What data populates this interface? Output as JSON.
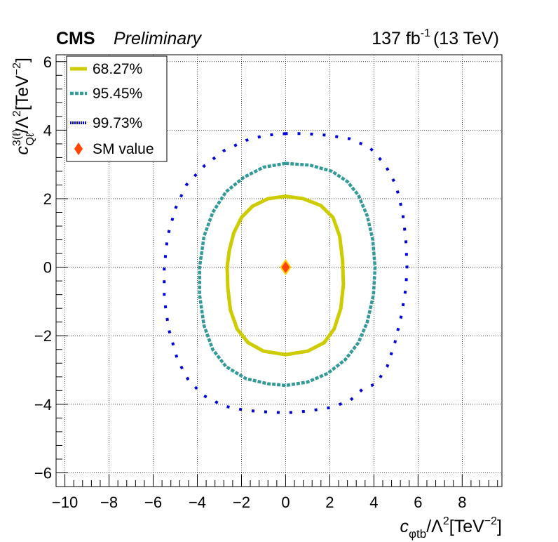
{
  "header": {
    "experiment": "CMS",
    "status": "Preliminary",
    "lumi": "137 fb",
    "lumi_exp": "-1",
    "energy": "(13 TeV)"
  },
  "chart_data": {
    "type": "scatter",
    "xlabel": {
      "c": "c",
      "sub": "φtb",
      "rest": "/Λ",
      "sup": "2",
      "unit": "[TeV",
      "unit_sup": "−2",
      "close": "]"
    },
    "ylabel": {
      "c": "c",
      "sup1": "3(ℓ)",
      "sub": "Qℓ",
      "rest": "/Λ",
      "sup": "2",
      "unit": "[TeV",
      "unit_sup": "−2",
      "close": "]"
    },
    "xlim": [
      -10.4,
      9.8
    ],
    "ylim": [
      -6.4,
      6.2
    ],
    "x_ticks": [
      -10,
      -8,
      -6,
      -4,
      -2,
      0,
      2,
      4,
      6,
      8
    ],
    "x_tick_labels": [
      "−10",
      "−8",
      "−6",
      "−4",
      "−2",
      "0",
      "2",
      "4",
      "6",
      "8"
    ],
    "y_ticks": [
      -6,
      -4,
      -2,
      0,
      2,
      4,
      6
    ],
    "y_tick_labels": [
      "−6",
      "−4",
      "−2",
      "0",
      "2",
      "4",
      "6"
    ],
    "grid": true,
    "legend_position": "top-left",
    "series": [
      {
        "name": "68.27%",
        "style": "solid",
        "color": "#cccc00",
        "points": [
          [
            0,
            2.07
          ],
          [
            -0.8,
            2.0
          ],
          [
            -1.5,
            1.78
          ],
          [
            -2.0,
            1.45
          ],
          [
            -2.35,
            1.0
          ],
          [
            -2.55,
            0.5
          ],
          [
            -2.65,
            0
          ],
          [
            -2.62,
            -0.6
          ],
          [
            -2.5,
            -1.25
          ],
          [
            -2.2,
            -1.8
          ],
          [
            -1.7,
            -2.2
          ],
          [
            -1.0,
            -2.45
          ],
          [
            0,
            -2.55
          ],
          [
            1.0,
            -2.45
          ],
          [
            1.75,
            -2.2
          ],
          [
            2.2,
            -1.8
          ],
          [
            2.5,
            -1.2
          ],
          [
            2.62,
            -0.5
          ],
          [
            2.58,
            0.2
          ],
          [
            2.45,
            0.9
          ],
          [
            2.15,
            1.45
          ],
          [
            1.6,
            1.8
          ],
          [
            0.8,
            2.0
          ]
        ]
      },
      {
        "name": "95.45%",
        "style": "dashed",
        "color": "#339999",
        "points": [
          [
            0,
            3.03
          ],
          [
            -1.0,
            2.92
          ],
          [
            -1.9,
            2.62
          ],
          [
            -2.7,
            2.2
          ],
          [
            -3.3,
            1.6
          ],
          [
            -3.7,
            0.9
          ],
          [
            -3.9,
            0
          ],
          [
            -3.9,
            -0.8
          ],
          [
            -3.7,
            -1.7
          ],
          [
            -3.3,
            -2.4
          ],
          [
            -2.7,
            -2.9
          ],
          [
            -1.8,
            -3.25
          ],
          [
            -0.8,
            -3.4
          ],
          [
            0,
            -3.45
          ],
          [
            1.0,
            -3.35
          ],
          [
            1.9,
            -3.1
          ],
          [
            2.7,
            -2.7
          ],
          [
            3.3,
            -2.2
          ],
          [
            3.7,
            -1.6
          ],
          [
            3.98,
            -0.8
          ],
          [
            4.05,
            0
          ],
          [
            3.95,
            0.8
          ],
          [
            3.7,
            1.5
          ],
          [
            3.3,
            2.1
          ],
          [
            2.8,
            2.5
          ],
          [
            2.1,
            2.8
          ],
          [
            1.1,
            2.98
          ]
        ]
      },
      {
        "name": "99.73%",
        "style": "dotted",
        "color": "#0000dd",
        "points": [
          [
            0,
            3.9
          ],
          [
            -0.9,
            3.85
          ],
          [
            -1.8,
            3.7
          ],
          [
            -2.8,
            3.4
          ],
          [
            -3.7,
            2.95
          ],
          [
            -4.5,
            2.4
          ],
          [
            -5.0,
            1.7
          ],
          [
            -5.35,
            0.9
          ],
          [
            -5.5,
            0
          ],
          [
            -5.5,
            -0.9
          ],
          [
            -5.3,
            -1.8
          ],
          [
            -4.9,
            -2.7
          ],
          [
            -4.4,
            -3.3
          ],
          [
            -3.7,
            -3.75
          ],
          [
            -2.8,
            -4.05
          ],
          [
            -1.8,
            -4.18
          ],
          [
            -0.9,
            -4.22
          ],
          [
            0,
            -4.25
          ],
          [
            1.0,
            -4.2
          ],
          [
            2.0,
            -4.1
          ],
          [
            2.9,
            -3.9
          ],
          [
            3.5,
            -3.55
          ],
          [
            4.1,
            -3.4
          ],
          [
            4.6,
            -2.9
          ],
          [
            4.95,
            -2.2
          ],
          [
            5.25,
            -1.4
          ],
          [
            5.45,
            -0.6
          ],
          [
            5.5,
            0
          ],
          [
            5.45,
            0.8
          ],
          [
            5.3,
            1.6
          ],
          [
            5.0,
            2.4
          ],
          [
            4.5,
            3.0
          ],
          [
            3.8,
            3.5
          ],
          [
            2.9,
            3.75
          ],
          [
            1.9,
            3.85
          ],
          [
            0.9,
            3.9
          ]
        ]
      }
    ],
    "markers": [
      {
        "name": "SM value",
        "x": 0,
        "y": 0,
        "color": "#ff4400",
        "outline": "#ffcc00",
        "shape": "diamond"
      }
    ]
  }
}
